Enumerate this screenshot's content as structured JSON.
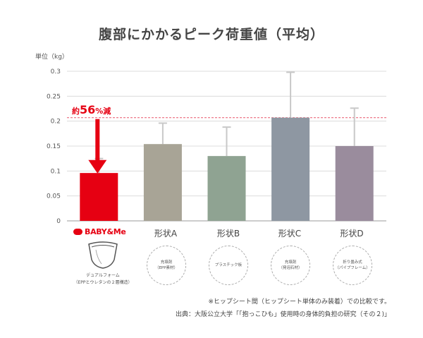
{
  "chart_data": {
    "type": "bar",
    "title": "腹部にかかるピーク荷重値（平均）",
    "ylabel": "単位（kg）",
    "ylim": [
      0,
      0.3
    ],
    "yticks": [
      "0",
      "0.05",
      "0.1",
      "0.15",
      "0.2",
      "0.25",
      "0.3"
    ],
    "categories": [
      "BABY&Me",
      "形状A",
      "形状B",
      "形状C",
      "形状D"
    ],
    "values": [
      0.096,
      0.154,
      0.13,
      0.207,
      0.15
    ],
    "error_upper": [
      0.125,
      0.196,
      0.188,
      0.298,
      0.226
    ],
    "colors": [
      "#e60012",
      "#a8a496",
      "#8fa392",
      "#8e97a2",
      "#9a8c9d"
    ],
    "reference_line": 0.207,
    "annotation": {
      "prefix": "約",
      "value": "56",
      "suffix": "%減"
    }
  },
  "brand": {
    "name": "BABY&Me"
  },
  "product": {
    "caption_line1": "デュアルフォーム",
    "caption_line2": "（EPPとウレタンの２層構造）"
  },
  "materials": [
    {
      "line1": "充填剤",
      "line2": "（EPP素材）"
    },
    {
      "line1": "プラスチック板",
      "line2": ""
    },
    {
      "line1": "充填剤",
      "line2": "（発泡石材）"
    },
    {
      "line1": "折り畳み式",
      "line2": "（パイプフレーム）"
    }
  ],
  "notes": {
    "note1": "※ヒップシート間（ヒップシート単体のみ装着）での比較です。",
    "note2": "出典：大阪公立大学「「抱っこひも」使用時の身体的負担の研究（その２)」"
  }
}
